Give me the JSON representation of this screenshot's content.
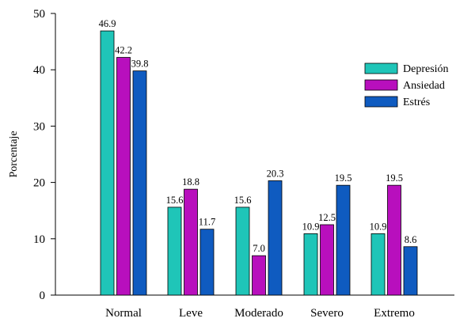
{
  "chart_data": {
    "type": "bar",
    "categories": [
      "Normal",
      "Leve",
      "Moderado",
      "Severo",
      "Extremo"
    ],
    "series": [
      {
        "name": "Depresión",
        "color": "#1fc5b8",
        "values": [
          46.9,
          15.6,
          15.6,
          10.9,
          10.9
        ],
        "labels": [
          "46.9",
          "15.6",
          "15.6",
          "10.9",
          "10.9"
        ]
      },
      {
        "name": "Ansiedad",
        "color": "#b80fbd",
        "values": [
          42.2,
          18.8,
          7.0,
          12.5,
          19.5
        ],
        "labels": [
          "42.2",
          "18.8",
          "7.0",
          "12.5",
          "19.5"
        ]
      },
      {
        "name": "Estrés",
        "color": "#0f5bc0",
        "values": [
          39.8,
          11.7,
          20.3,
          19.5,
          8.6
        ],
        "labels": [
          "39.8",
          "11.7",
          "20.3",
          "19.5",
          "8.6"
        ]
      }
    ],
    "ylabel": "Porcentaje",
    "xlabel": "",
    "ylim": [
      0,
      50
    ],
    "yticks": [
      0,
      10,
      20,
      30,
      40,
      50
    ],
    "legend_position": "top-right",
    "grid": false
  }
}
